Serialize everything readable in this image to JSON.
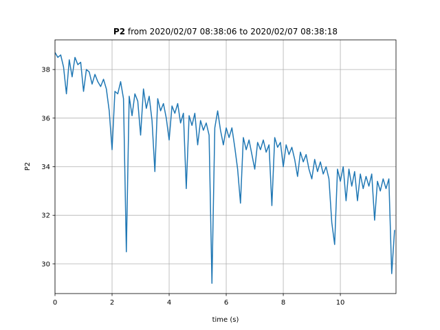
{
  "chart_data": {
    "type": "line",
    "title_bold": "P2",
    "title": "from 2020/02/07 08:38:06 to 2020/02/07 08:38:18",
    "xlabel": "time (s)",
    "ylabel": "P2",
    "xlim": [
      0,
      11.95
    ],
    "ylim": [
      28.78,
      39.22
    ],
    "xticks": [
      0,
      2,
      4,
      6,
      8,
      10
    ],
    "yticks": [
      30,
      32,
      34,
      36,
      38
    ],
    "grid": true,
    "x": [
      0.0,
      0.1,
      0.2,
      0.3,
      0.4,
      0.5,
      0.6,
      0.7,
      0.8,
      0.9,
      1.0,
      1.1,
      1.2,
      1.3,
      1.4,
      1.5,
      1.6,
      1.7,
      1.8,
      1.9,
      2.0,
      2.1,
      2.2,
      2.3,
      2.4,
      2.5,
      2.6,
      2.7,
      2.8,
      2.9,
      3.0,
      3.1,
      3.2,
      3.3,
      3.4,
      3.5,
      3.6,
      3.7,
      3.8,
      3.9,
      4.0,
      4.1,
      4.2,
      4.3,
      4.4,
      4.5,
      4.6,
      4.7,
      4.8,
      4.9,
      5.0,
      5.1,
      5.2,
      5.3,
      5.4,
      5.5,
      5.6,
      5.7,
      5.8,
      5.9,
      6.0,
      6.1,
      6.2,
      6.3,
      6.4,
      6.5,
      6.6,
      6.7,
      6.8,
      6.9,
      7.0,
      7.1,
      7.2,
      7.3,
      7.4,
      7.5,
      7.6,
      7.7,
      7.8,
      7.9,
      8.0,
      8.1,
      8.2,
      8.3,
      8.4,
      8.5,
      8.6,
      8.7,
      8.8,
      8.9,
      9.0,
      9.1,
      9.2,
      9.3,
      9.4,
      9.5,
      9.6,
      9.7,
      9.8,
      9.9,
      10.0,
      10.1,
      10.2,
      10.3,
      10.4,
      10.5,
      10.6,
      10.7,
      10.8,
      10.9,
      11.0,
      11.1,
      11.2,
      11.3,
      11.4,
      11.5,
      11.6,
      11.7,
      11.8,
      11.9
    ],
    "series": [
      {
        "name": "P2",
        "color": "#1f77b4",
        "values": [
          38.7,
          38.5,
          38.6,
          38.1,
          37.0,
          38.4,
          37.7,
          38.5,
          38.2,
          38.3,
          37.1,
          38.0,
          37.9,
          37.4,
          37.8,
          37.5,
          37.3,
          37.6,
          37.2,
          36.3,
          34.7,
          37.1,
          37.0,
          37.5,
          36.8,
          30.5,
          36.9,
          36.1,
          37.0,
          36.7,
          35.3,
          37.2,
          36.4,
          36.9,
          35.9,
          33.8,
          36.8,
          36.3,
          36.6,
          36.0,
          35.1,
          36.5,
          36.2,
          36.6,
          35.8,
          36.2,
          33.1,
          36.1,
          35.7,
          36.2,
          34.9,
          35.9,
          35.5,
          35.8,
          35.3,
          29.2,
          35.6,
          36.3,
          35.5,
          34.9,
          35.6,
          35.2,
          35.6,
          34.8,
          33.9,
          32.5,
          35.2,
          34.7,
          35.1,
          34.5,
          33.9,
          35.0,
          34.7,
          35.1,
          34.6,
          34.9,
          32.4,
          35.2,
          34.8,
          35.0,
          34.0,
          34.9,
          34.5,
          34.8,
          34.3,
          33.6,
          34.6,
          34.2,
          34.5,
          33.9,
          33.5,
          34.3,
          33.8,
          34.2,
          33.7,
          34.0,
          33.5,
          31.7,
          30.8,
          33.9,
          33.4,
          34.0,
          32.6,
          33.9,
          33.2,
          33.8,
          32.6,
          33.7,
          33.1,
          33.6,
          33.2,
          33.7,
          31.8,
          33.4,
          33.0,
          33.5,
          33.1,
          33.5,
          29.6,
          31.4
        ]
      }
    ]
  }
}
